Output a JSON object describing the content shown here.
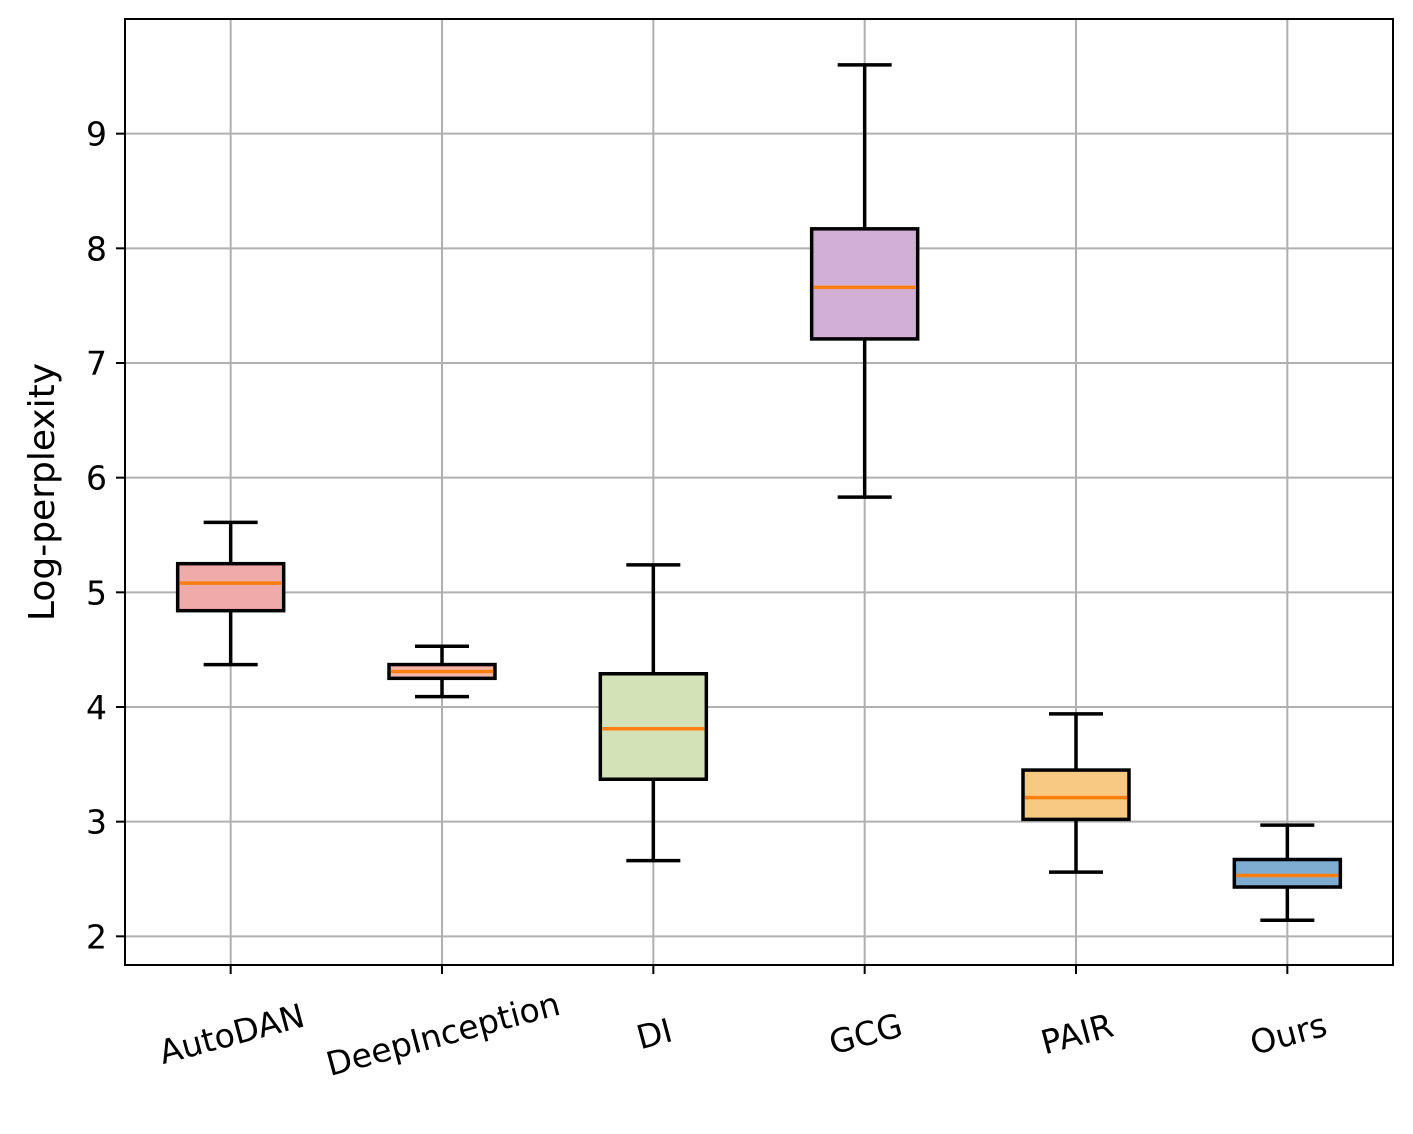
{
  "chart_data": {
    "type": "box",
    "title": "",
    "xlabel": "",
    "ylabel": "Log-perplexity",
    "ylim": [
      1.75,
      10.0
    ],
    "yticks": [
      2,
      3,
      4,
      5,
      6,
      7,
      8,
      9
    ],
    "grid": true,
    "median_color": "#ff7f0e",
    "categories": [
      "AutoDAN",
      "DeepInception",
      "DI",
      "GCG",
      "PAIR",
      "Ours"
    ],
    "boxes": [
      {
        "name": "AutoDAN",
        "whisker_low": 4.37,
        "q1": 4.84,
        "median": 5.08,
        "q3": 5.25,
        "whisker_high": 5.61,
        "color": "#f0aaa9"
      },
      {
        "name": "DeepInception",
        "whisker_low": 4.09,
        "q1": 4.25,
        "median": 4.31,
        "q3": 4.37,
        "whisker_high": 4.53,
        "color": "#f4b6ab"
      },
      {
        "name": "DI",
        "whisker_low": 2.66,
        "q1": 3.37,
        "median": 3.81,
        "q3": 4.29,
        "whisker_high": 5.24,
        "color": "#d4e3b7"
      },
      {
        "name": "GCG",
        "whisker_low": 5.83,
        "q1": 7.21,
        "median": 7.66,
        "q3": 8.17,
        "whisker_high": 9.6,
        "color": "#d2b0d6"
      },
      {
        "name": "PAIR",
        "whisker_low": 2.56,
        "q1": 3.02,
        "median": 3.21,
        "q3": 3.45,
        "whisker_high": 3.94,
        "color": "#f8c982"
      },
      {
        "name": "Ours",
        "whisker_low": 2.14,
        "q1": 2.43,
        "median": 2.53,
        "q3": 2.67,
        "whisker_high": 2.97,
        "color": "#7fadd1"
      }
    ]
  }
}
